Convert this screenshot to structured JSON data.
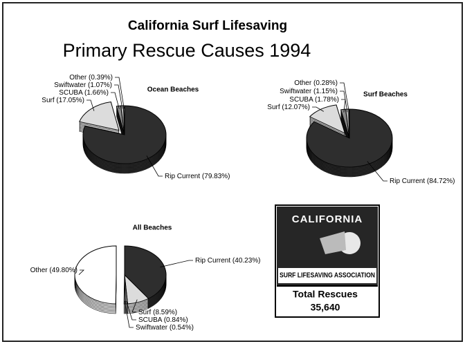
{
  "title": "California Surf Lifesaving",
  "subtitle": "Primary Rescue Causes 1994",
  "chart_data": [
    {
      "type": "pie",
      "title": "Ocean Beaches",
      "categories": [
        "Rip Current",
        "Surf",
        "SCUBA",
        "Swiftwater",
        "Other"
      ],
      "values": [
        79.83,
        17.05,
        1.66,
        1.07,
        0.39
      ],
      "value_labels": [
        "(79.83%)",
        "(17.05%)",
        "(1.66%)",
        "(1.07%)",
        "(0.39%)"
      ],
      "colors": [
        "#2e2e2e",
        "#dcdcdc",
        "#8a8a8a",
        "#b5b5b5",
        "#ffffff"
      ]
    },
    {
      "type": "pie",
      "title": "Surf Beaches",
      "categories": [
        "Rip Current",
        "Surf",
        "SCUBA",
        "Swiftwater",
        "Other"
      ],
      "values": [
        84.72,
        12.07,
        1.78,
        1.15,
        0.28
      ],
      "value_labels": [
        "(84.72%)",
        "(12.07%)",
        "(1.78%)",
        "(1.15%)",
        "(0.28%)"
      ],
      "colors": [
        "#2e2e2e",
        "#dcdcdc",
        "#8a8a8a",
        "#b5b5b5",
        "#ffffff"
      ]
    },
    {
      "type": "pie",
      "title": "All Beaches",
      "categories": [
        "Rip Current",
        "Surf",
        "SCUBA",
        "Swiftwater",
        "Other"
      ],
      "values": [
        40.23,
        8.59,
        0.84,
        0.54,
        49.8
      ],
      "value_labels": [
        "(40.23%)",
        "(8.59%)",
        "(0.84%)",
        "(0.54%)",
        "(49.80%)"
      ],
      "colors": [
        "#2e2e2e",
        "#dcdcdc",
        "#8a8a8a",
        "#b5b5b5",
        "#ffffff"
      ]
    }
  ],
  "logo": {
    "name": "CALIFORNIA",
    "tagline": "SURF LIFESAVING ASSOCIATION"
  },
  "total": {
    "label": "Total Rescues",
    "value": "35,640"
  }
}
